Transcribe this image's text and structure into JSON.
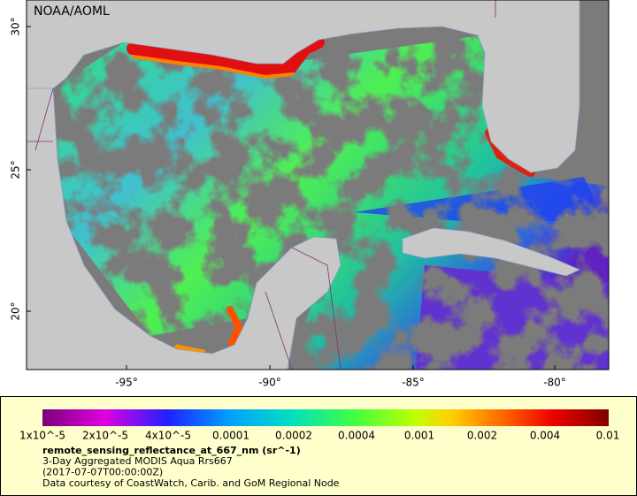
{
  "header": {
    "credit": "NOAA/AOML"
  },
  "map": {
    "lat_labels": [
      "30°",
      "25°",
      "20°"
    ],
    "lon_labels": [
      "-95°",
      "-90°",
      "-85°",
      "-80°"
    ]
  },
  "legend": {
    "tick_labels": [
      "1x10^-5",
      "2x10^-5",
      "4x10^-5",
      "0.0001",
      "0.0002",
      "0.0004",
      "0.001",
      "0.002",
      "0.004",
      "0.01"
    ],
    "title": "remote_sensing_reflectance_at_667_nm (sr^-1)",
    "lines": [
      "3-Day Aggregated MODIS Aqua Rrs667",
      "(2017-07-07T00:00:00Z)",
      "Data courtesy of CoastWatch, Carib. and GoM Regional Node"
    ]
  }
}
